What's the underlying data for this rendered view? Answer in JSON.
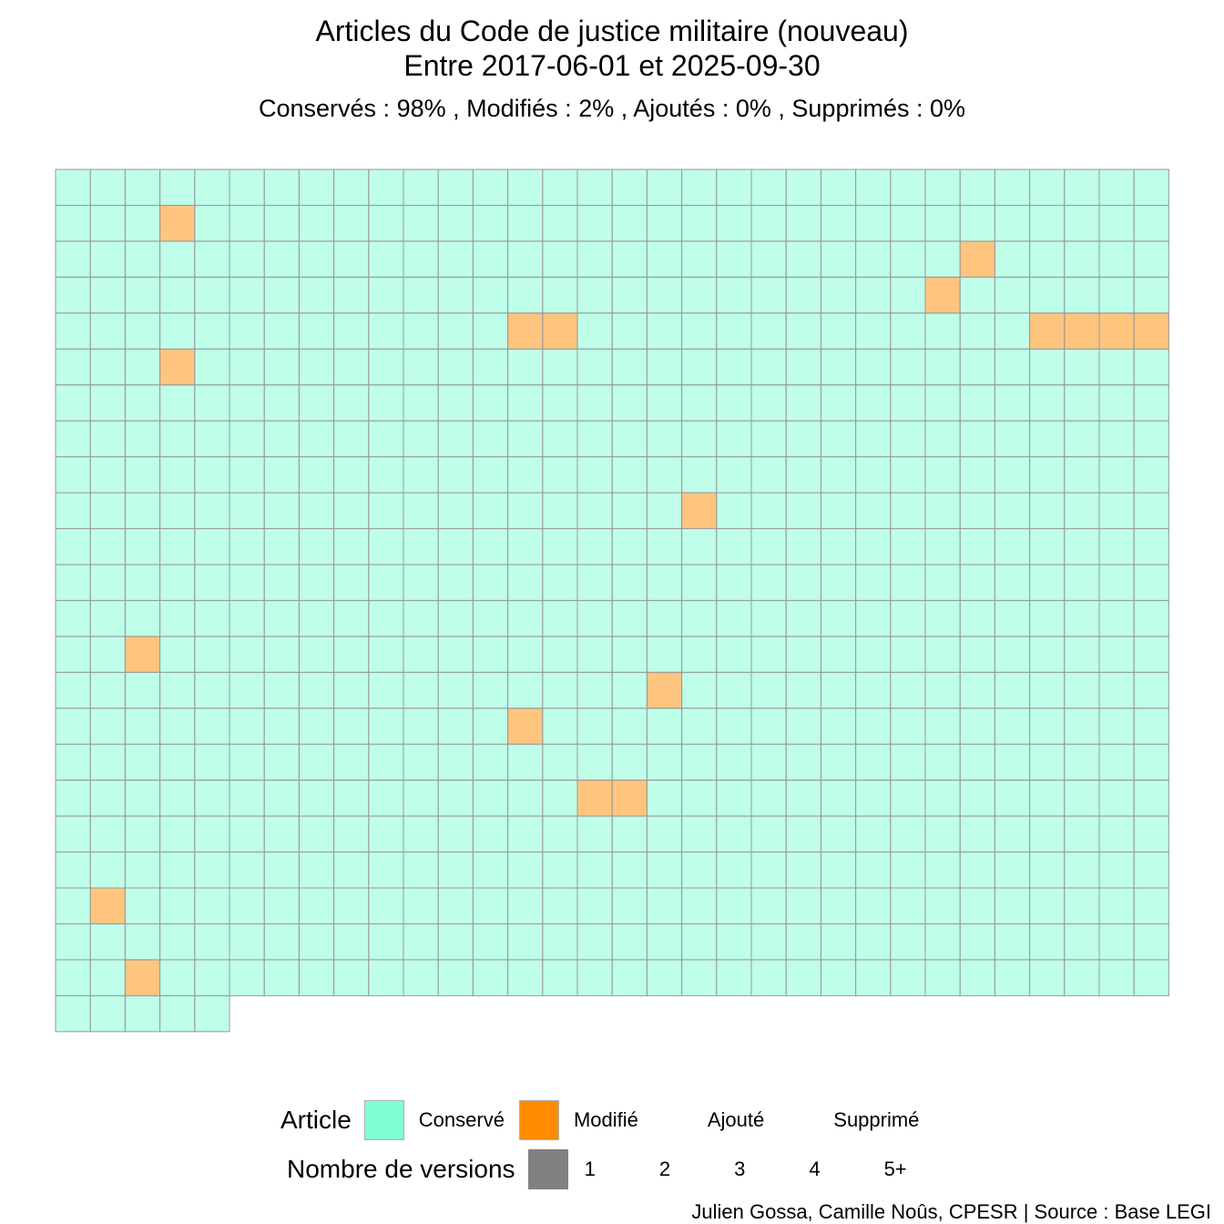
{
  "chart_data": {
    "type": "waffle",
    "title": "Articles du Code de justice militaire (nouveau)",
    "subtitle": "Entre 2017-06-01 et 2025-09-30",
    "summary": {
      "conserves_label": "Conservés :",
      "conserves_value": "98%",
      "modifies_label": "Modifiés :",
      "modifies_value": "2%",
      "ajoutes_label": "Ajoutés :",
      "ajoutes_value": "0%",
      "supprimes_label": "Supprimés :",
      "supprimes_value": "0%"
    },
    "grid": {
      "columns": 32,
      "rows_full": 23,
      "last_row_count": 5,
      "total_articles": 741
    },
    "status_colors": {
      "Conservé": "#7FFFD4",
      "Modifié": "#FF8C00",
      "Ajouté": "",
      "Supprimé": ""
    },
    "cell_border_color": "#999999",
    "modified_cells": [
      [
        1,
        3
      ],
      [
        2,
        26
      ],
      [
        3,
        25
      ],
      [
        4,
        13
      ],
      [
        4,
        14
      ],
      [
        4,
        28
      ],
      [
        4,
        29
      ],
      [
        4,
        30
      ],
      [
        4,
        31
      ],
      [
        5,
        3
      ],
      [
        9,
        18
      ],
      [
        13,
        2
      ],
      [
        14,
        17
      ],
      [
        15,
        13
      ],
      [
        17,
        15
      ],
      [
        17,
        16
      ],
      [
        20,
        1
      ],
      [
        22,
        2
      ]
    ],
    "legend": {
      "article_title": "Article",
      "article_items": [
        "Conservé",
        "Modifié",
        "Ajouté",
        "Supprimé"
      ],
      "versions_title": "Nombre de versions",
      "versions_items": [
        "1",
        "2",
        "3",
        "4",
        "5+"
      ],
      "versions_color": "#808080"
    },
    "caption": "Julien Gossa, Camille Noûs, CPESR  |  Source : Base LEGI"
  }
}
